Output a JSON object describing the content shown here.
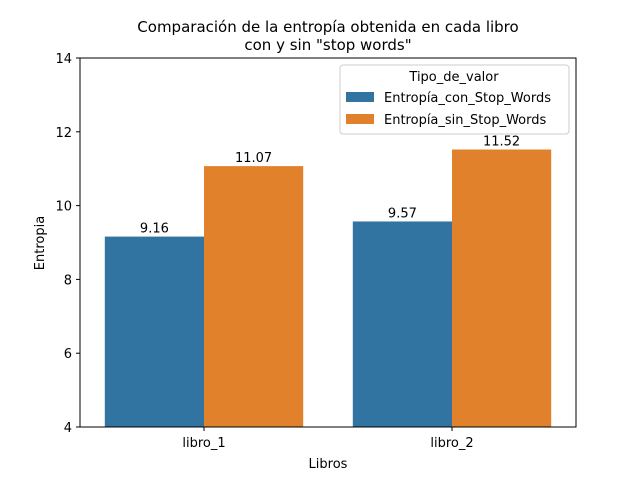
{
  "chart_data": {
    "type": "bar",
    "title_line1": "Comparación de la entropía obtenida en cada libro",
    "title_line2": "con y sin \"stop words\"",
    "xlabel": "Libros",
    "ylabel": "Entropia",
    "categories": [
      "libro_1",
      "libro_2"
    ],
    "ylim": [
      4,
      14
    ],
    "yticks": [
      4,
      6,
      8,
      10,
      12,
      14
    ],
    "legend_title": "Tipo_de_valor",
    "legend_position": "upper-right",
    "grid": false,
    "series": [
      {
        "name": "Entropía_con_Stop_Words",
        "color": "#3274a1",
        "values": [
          9.16,
          9.57
        ],
        "labels": [
          "9.16",
          "9.57"
        ]
      },
      {
        "name": "Entropía_sin_Stop_Words",
        "color": "#e1812c",
        "values": [
          11.07,
          11.52
        ],
        "labels": [
          "11.07",
          "11.52"
        ]
      }
    ]
  }
}
